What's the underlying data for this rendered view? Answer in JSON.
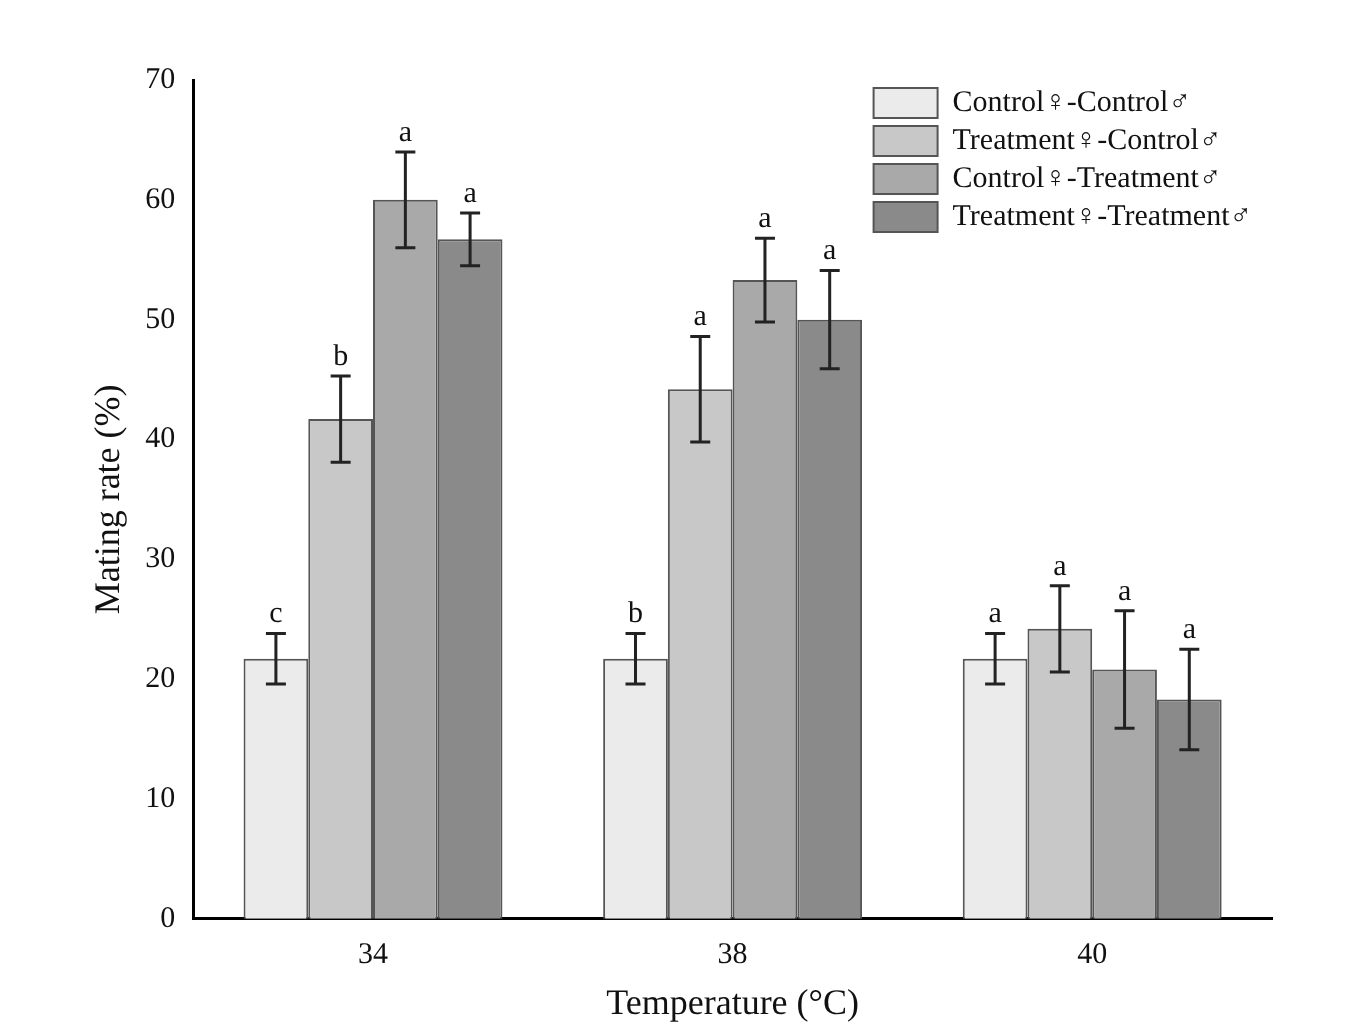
{
  "chart_data": {
    "type": "bar",
    "xlabel": "Temperature (°C)",
    "ylabel": "Mating rate (%)",
    "categories": [
      "34",
      "38",
      "40"
    ],
    "series": [
      {
        "name": "Control♀-Control♂",
        "color": "#ebebeb",
        "values": [
          21.7,
          21.7,
          21.7
        ],
        "errors": [
          2.1,
          2.1,
          2.1
        ]
      },
      {
        "name": "Treatment♀-Control♂",
        "color": "#c8c8c8",
        "values": [
          41.7,
          44.2,
          24.2
        ],
        "errors": [
          3.6,
          4.4,
          3.6
        ]
      },
      {
        "name": "Control♀-Treatment♂",
        "color": "#a9a9a9",
        "values": [
          60,
          53.3,
          20.8
        ],
        "errors": [
          4,
          3.5,
          4.9
        ]
      },
      {
        "name": "Treatment♀-Treatment♂",
        "color": "#8a8a8a",
        "values": [
          56.7,
          50,
          18.3
        ],
        "errors": [
          2.2,
          4.1,
          4.2
        ]
      }
    ],
    "ylim": [
      0,
      70
    ],
    "yticks": [
      0,
      10,
      20,
      30,
      40,
      50,
      60,
      70
    ],
    "grid": false,
    "legend": "top right",
    "annotations": [
      "c",
      "b",
      "a",
      "a",
      "b",
      "a",
      "a",
      "a",
      "a",
      "a",
      "a",
      "a"
    ]
  }
}
